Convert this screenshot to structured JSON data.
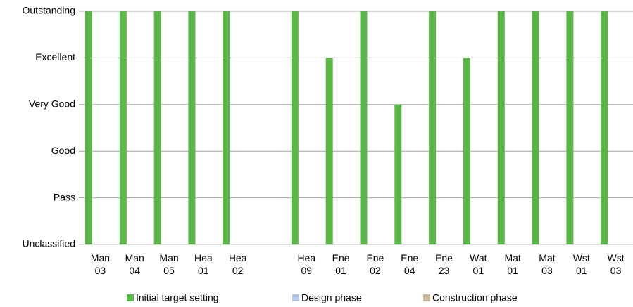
{
  "chart_data": {
    "type": "bar",
    "categories": [
      "Man 03",
      "Man 04",
      "Man 05",
      "Hea 01",
      "Hea 02",
      null,
      "Hea 09",
      "Ene 01",
      "Ene 02",
      "Ene 04",
      "Ene 23",
      "Wat 01",
      "Mat 01",
      "Mat 03",
      "Wst 01",
      "Wst 03"
    ],
    "series": [
      {
        "name": "Initial target setting",
        "color": "#5cb548",
        "values": [
          5,
          5,
          5,
          5,
          5,
          null,
          5,
          4,
          5,
          3,
          5,
          4,
          5,
          5,
          5,
          5
        ]
      },
      {
        "name": "Design phase",
        "color": "#b4c7e7",
        "values": [
          null,
          null,
          null,
          null,
          null,
          null,
          null,
          null,
          null,
          null,
          null,
          null,
          null,
          null,
          null,
          null
        ]
      },
      {
        "name": "Construction phase",
        "color": "#c9b99a",
        "values": [
          null,
          null,
          null,
          null,
          null,
          null,
          null,
          null,
          null,
          null,
          null,
          null,
          null,
          null,
          null,
          null
        ]
      }
    ],
    "ylim": [
      0,
      5
    ],
    "yticks": [
      {
        "value": 0,
        "label": "Unclassified"
      },
      {
        "value": 1,
        "label": "Pass"
      },
      {
        "value": 2,
        "label": "Good"
      },
      {
        "value": 3,
        "label": "Very Good"
      },
      {
        "value": 4,
        "label": "Excellent"
      },
      {
        "value": 5,
        "label": "Outstanding"
      }
    ],
    "grid": true
  }
}
